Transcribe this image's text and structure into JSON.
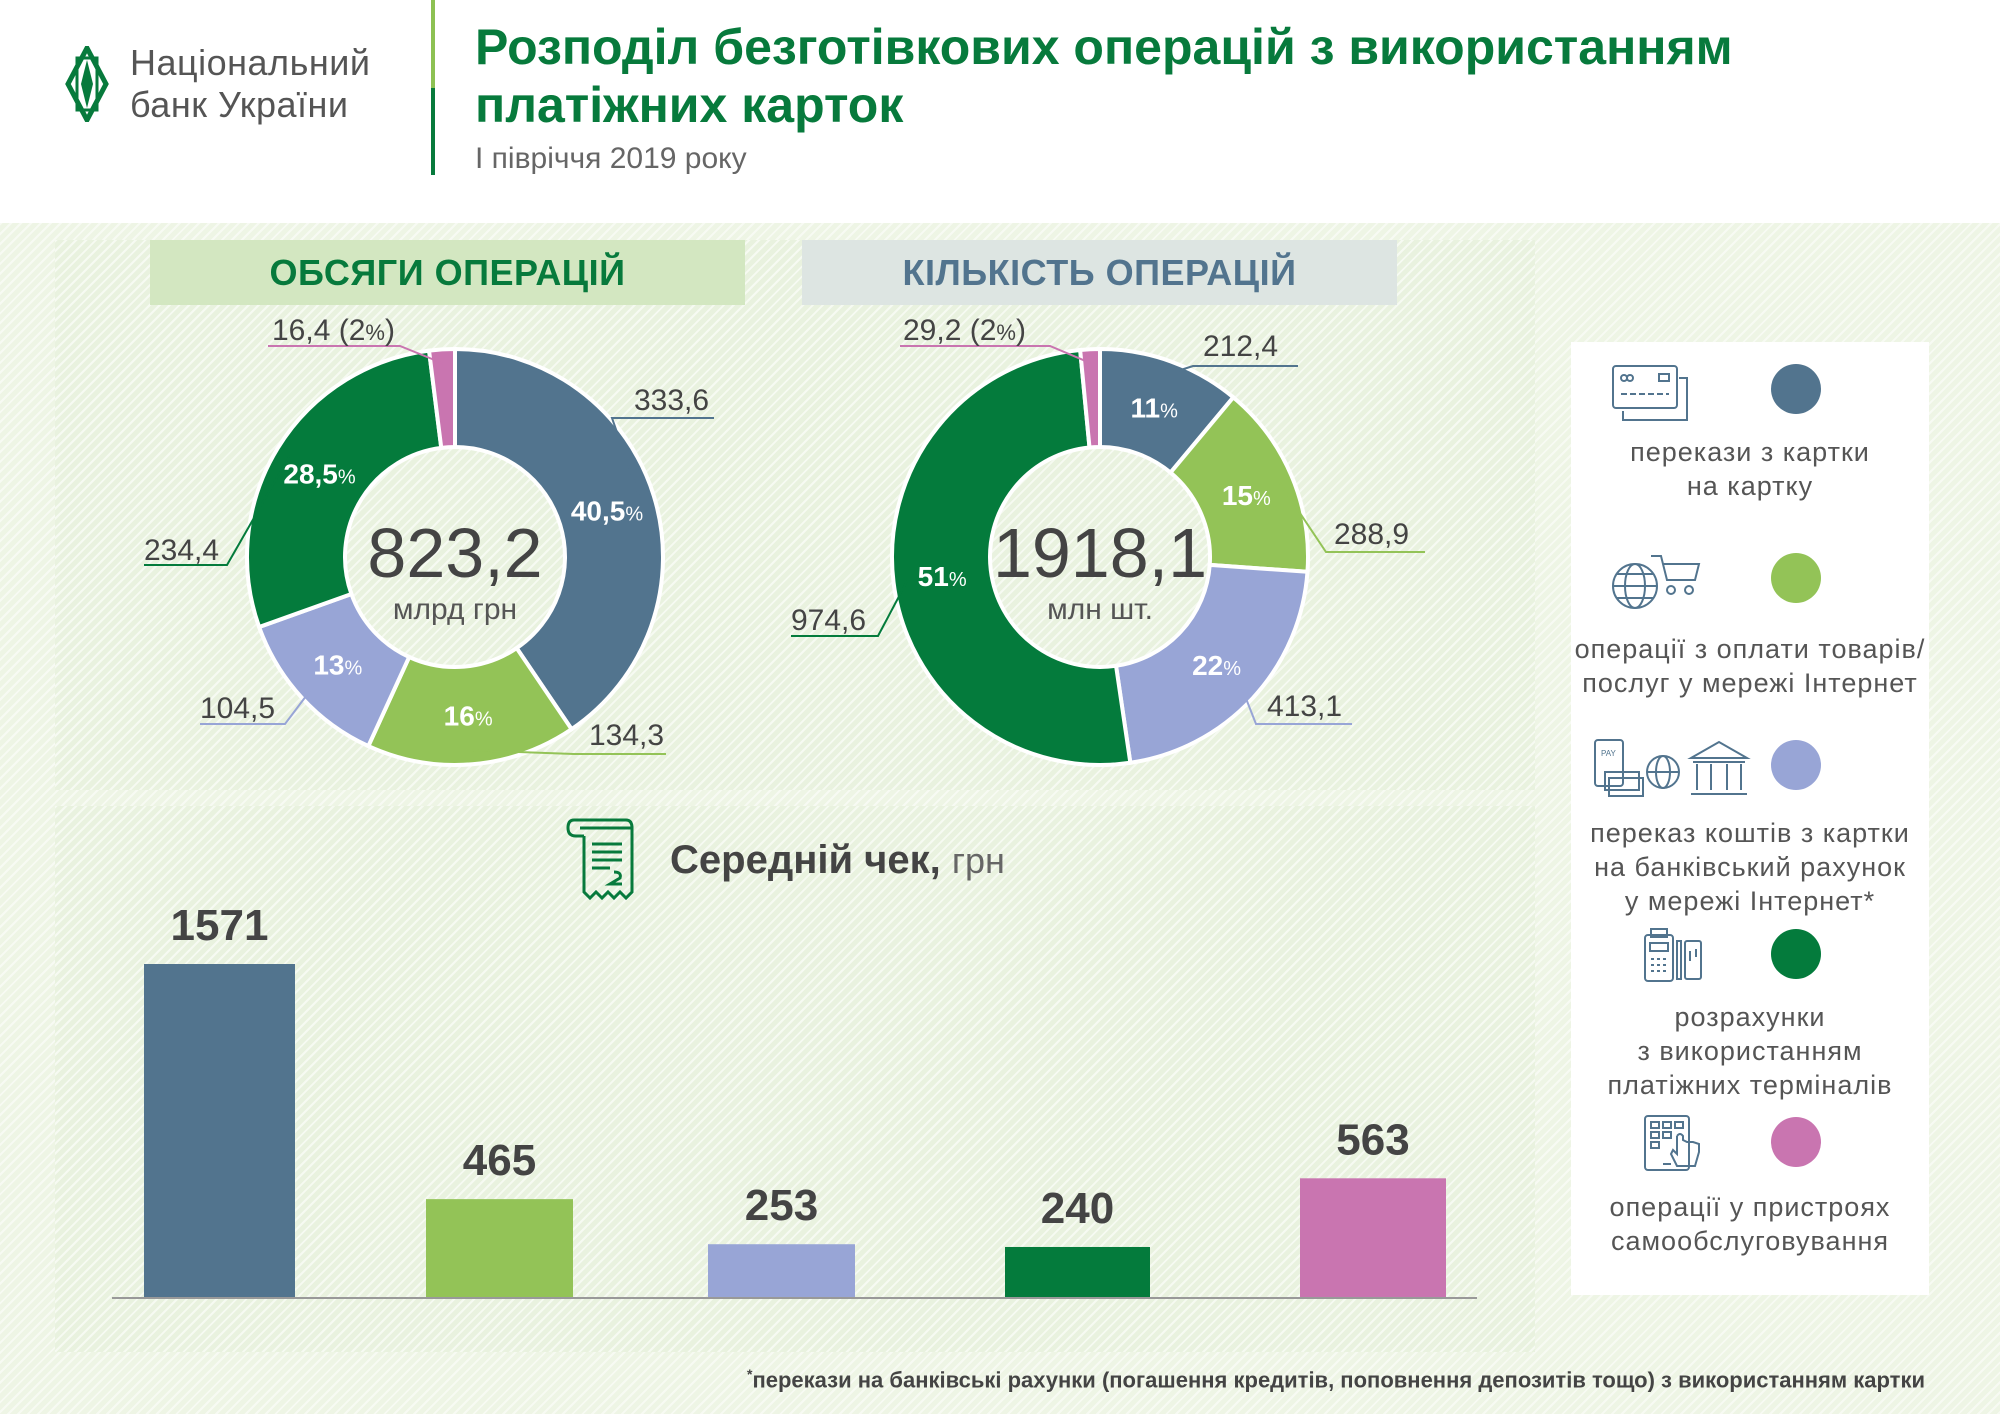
{
  "header": {
    "logo_line1": "Національний",
    "logo_line2": "банк України",
    "title_line1": "Розподіл безготівкових операцій з використанням",
    "title_line2": "платіжних карток",
    "subtitle": "І півріччя 2019 року"
  },
  "colors": {
    "card_to_card": "#52748e",
    "internet_purchases": "#93c357",
    "card_to_account": "#98a5d6",
    "terminals": "#047b3c",
    "self_service": "#c975b0",
    "brand_green": "#077a3c"
  },
  "legend": [
    {
      "icon": "credit-cards-icon",
      "lines": [
        "перекази з картки",
        "на картку"
      ],
      "color": "#52748e"
    },
    {
      "icon": "globe-cart-icon",
      "lines": [
        "операції з оплати товарів/",
        "послуг у мережі Інтернет"
      ],
      "color": "#93c357"
    },
    {
      "icon": "pay-globe-bank-icon",
      "lines": [
        "переказ коштів з картки",
        "на банківський рахунок",
        "у мережі Інтернет*"
      ],
      "color": "#98a5d6"
    },
    {
      "icon": "payment-terminal-icon",
      "lines": [
        "розрахунки",
        "з використанням",
        "платіжних терміналів"
      ],
      "color": "#047b3c"
    },
    {
      "icon": "self-service-kiosk-icon",
      "lines": [
        "операції у пристроях",
        "самообслуговування"
      ],
      "color": "#c975b0"
    }
  ],
  "footnote": {
    "mark": "*",
    "text": "перекази на банківські рахунки (погашення кредитів, поповнення депозитів тощо) з використанням картки"
  },
  "chart_data": [
    {
      "type": "pie",
      "variant": "donut",
      "title": "ОБСЯГИ ОПЕРАЦІЙ",
      "center_value": "823,2",
      "center_unit": "млрд грн",
      "categories": [
        "перекази з картки на картку",
        "операції з оплати товарів/послуг у мережі Інтернет",
        "переказ коштів з картки на банківський рахунок у мережі Інтернет*",
        "розрахунки з використанням платіжних терміналів",
        "операції у пристроях самообслуговування"
      ],
      "values": [
        333.6,
        134.3,
        104.5,
        234.4,
        16.4
      ],
      "value_labels": [
        "333,6",
        "134,3",
        "104,5",
        "234,4",
        "16,4"
      ],
      "percent_labels": [
        "40,5",
        "16",
        "13",
        "28,5",
        "2"
      ],
      "colors": [
        "#52748e",
        "#93c357",
        "#98a5d6",
        "#047b3c",
        "#c975b0"
      ]
    },
    {
      "type": "pie",
      "variant": "donut",
      "title": "КІЛЬКІСТЬ ОПЕРАЦІЙ",
      "center_value": "1918,1",
      "center_unit": "млн шт.",
      "categories": [
        "перекази з картки на картку",
        "операції з оплати товарів/послуг у мережі Інтернет",
        "переказ коштів з картки на банківський рахунок у мережі Інтернет*",
        "розрахунки з використанням платіжних терміналів",
        "операції у пристроях самообслуговування"
      ],
      "values": [
        212.4,
        288.9,
        413.1,
        974.6,
        29.2
      ],
      "value_labels": [
        "212,4",
        "288,9",
        "413,1",
        "974,6",
        "29,2"
      ],
      "percent_labels": [
        "11",
        "15",
        "22",
        "51",
        "2"
      ],
      "colors": [
        "#52748e",
        "#93c357",
        "#98a5d6",
        "#047b3c",
        "#c975b0"
      ]
    },
    {
      "type": "bar",
      "title": "Середній чек,",
      "title_unit": "грн",
      "categories": [
        "перекази з картки на картку",
        "операції з оплати товарів/послуг у мережі Інтернет",
        "переказ коштів з картки на банківський рахунок у мережі Інтернет*",
        "розрахунки з використанням платіжних терміналів",
        "операції у пристроях самообслуговування"
      ],
      "values": [
        1571,
        465,
        253,
        240,
        563
      ],
      "colors": [
        "#52748e",
        "#93c357",
        "#98a5d6",
        "#047b3c",
        "#c975b0"
      ],
      "ylim": [
        0,
        1571
      ],
      "grid": false
    }
  ]
}
